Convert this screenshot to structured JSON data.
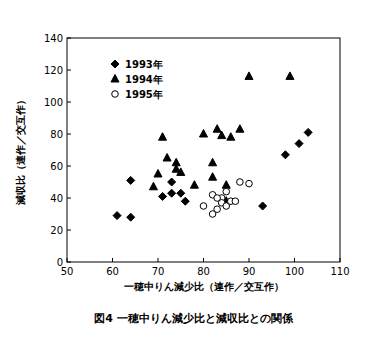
{
  "chart_data": {
    "type": "scatter",
    "title": "図4 一穂中りん減少比と減収比との関係",
    "x_label": "一穂中りん減少比（連作／交互作）",
    "y_label": "減収比（連作／交互作）",
    "xlim": [
      50,
      110
    ],
    "xticks": [
      50,
      60,
      70,
      80,
      90,
      100,
      110
    ],
    "ylim": [
      0,
      140
    ],
    "yticks": [
      0,
      20,
      40,
      60,
      80,
      100,
      120,
      140
    ],
    "legend": "upper left",
    "grid": false,
    "series": [
      {
        "name": "1993年",
        "color": "#000000",
        "marker": "diamond",
        "x": [
          61,
          64,
          64,
          71,
          73,
          73,
          75,
          76,
          93,
          98,
          101,
          103
        ],
        "values": [
          29,
          28,
          51,
          41,
          50,
          43,
          43,
          38,
          35,
          67,
          74,
          81
        ]
      },
      {
        "name": "1994年",
        "color": "#000000",
        "marker": "triangle",
        "x": [
          69,
          70,
          71,
          72,
          74,
          74,
          75,
          78,
          80,
          82,
          82,
          83,
          84,
          85,
          85,
          86,
          88,
          90,
          99
        ],
        "values": [
          47,
          55,
          78,
          65,
          62,
          58,
          56,
          48,
          80,
          62,
          53,
          83,
          79,
          38,
          48,
          78,
          83,
          116,
          116
        ]
      },
      {
        "name": "1995年",
        "color": "#000000",
        "marker": "circle",
        "x": [
          80,
          82,
          82,
          83,
          84,
          84,
          85,
          85,
          86,
          87,
          88,
          90,
          83
        ],
        "values": [
          35,
          30,
          42,
          33,
          40,
          37,
          35,
          44,
          38,
          38,
          50,
          49,
          40
        ]
      }
    ]
  }
}
